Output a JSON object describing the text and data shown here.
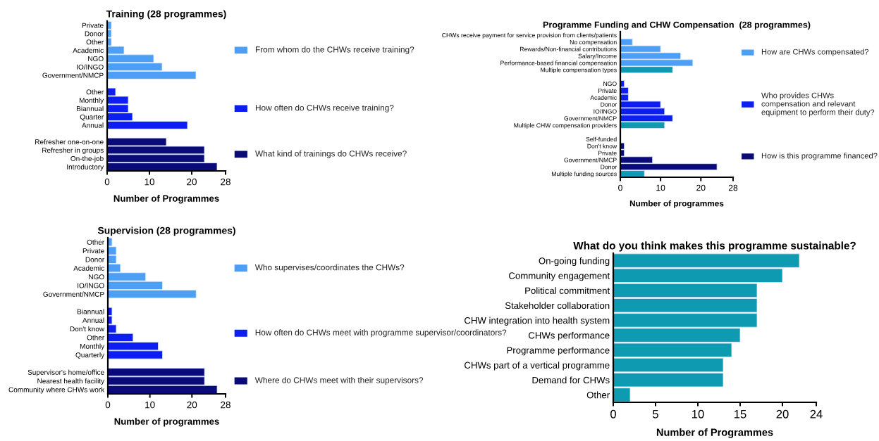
{
  "chart_data": [
    {
      "type": "bar",
      "orientation": "horizontal",
      "title": "Training (28 programmes)",
      "xlabel": "Number of Programmes",
      "xlim": [
        0,
        28
      ],
      "xticks": [
        0,
        10,
        20,
        28
      ],
      "legend": "right",
      "categories": [
        "Private",
        "Donor",
        "Other",
        "Academic",
        "NGO",
        "IO/INGO",
        "Government/NMCP",
        null,
        "Other",
        "Monthly",
        "Biannual",
        "Quarter",
        "Annual",
        null,
        "Refresher one-on-one",
        "Refresher in groups",
        "On-the-job",
        "Introductory"
      ],
      "series": [
        {
          "name": "From whom do the CHWs receive training?",
          "color": "#4d9ff5",
          "values": [
            1,
            1,
            1,
            4,
            11,
            13,
            21,
            null,
            null,
            null,
            null,
            null,
            null,
            null,
            null,
            null,
            null,
            null
          ]
        },
        {
          "name": "How often do CHWs receive training?",
          "color": "#0c1ef2",
          "values": [
            null,
            null,
            null,
            null,
            null,
            null,
            null,
            null,
            2,
            5,
            5,
            6,
            19,
            null,
            null,
            null,
            null,
            null
          ]
        },
        {
          "name": "What kind of trainings do CHWs receive?",
          "color": "#0a0a78",
          "values": [
            null,
            null,
            null,
            null,
            null,
            null,
            null,
            null,
            null,
            null,
            null,
            null,
            null,
            null,
            14,
            23,
            23,
            26
          ]
        }
      ]
    },
    {
      "type": "bar",
      "orientation": "horizontal",
      "title": "Programme Funding and CHW Compensation  (28 programmes)",
      "xlabel": "Number of programmes",
      "xlim": [
        0,
        28
      ],
      "xticks": [
        0,
        10,
        20,
        28
      ],
      "legend": "right",
      "categories": [
        "CHWs receive payment for service provision from clients/patients",
        "No compensation",
        "Rewards/Non-financial contributions",
        "Salary/Income",
        "Performance-based financial compensation",
        "Multiple compensation types",
        null,
        "NGO",
        "Private",
        "Academic",
        "Donor",
        "IO/INGO",
        "Government/NMCP",
        "Multiple CHW compensation providers",
        null,
        "Self-funded",
        "Don't know",
        "Private",
        "Government/NMCP",
        "Donor",
        "Multiple funding sources"
      ],
      "series": [
        {
          "name": "How are CHWs compensated?",
          "color": "#4d9ff5",
          "values": [
            0,
            3,
            10,
            15,
            18,
            13,
            null,
            null,
            null,
            null,
            null,
            null,
            null,
            null,
            null,
            null,
            null,
            null,
            null,
            null,
            null
          ],
          "colors": [
            "#4d9ff5",
            "#4d9ff5",
            "#4d9ff5",
            "#4d9ff5",
            "#4d9ff5",
            "#0e9ab0",
            null,
            null,
            null,
            null,
            null,
            null,
            null,
            null,
            null,
            null,
            null,
            null,
            null,
            null,
            null
          ]
        },
        {
          "name": "Who provides CHWs compensation and relevant equipment to perform their duty?",
          "color": "#0c1ef2",
          "values": [
            null,
            null,
            null,
            null,
            null,
            null,
            null,
            1,
            2,
            2,
            10,
            11,
            13,
            11,
            null,
            null,
            null,
            null,
            null,
            null,
            null
          ],
          "colors": [
            null,
            null,
            null,
            null,
            null,
            null,
            null,
            "#0c1ef2",
            "#0c1ef2",
            "#0c1ef2",
            "#0c1ef2",
            "#0c1ef2",
            "#0c1ef2",
            "#0e9ab0",
            null,
            null,
            null,
            null,
            null,
            null,
            null
          ]
        },
        {
          "name": "How is this programme financed?",
          "color": "#0a0a78",
          "values": [
            null,
            null,
            null,
            null,
            null,
            null,
            null,
            null,
            null,
            null,
            null,
            null,
            null,
            null,
            null,
            0,
            1,
            1,
            8,
            24,
            6
          ],
          "colors": [
            null,
            null,
            null,
            null,
            null,
            null,
            null,
            null,
            null,
            null,
            null,
            null,
            null,
            null,
            null,
            "#0a0a78",
            "#0a0a78",
            "#0a0a78",
            "#0a0a78",
            "#0a0a78",
            "#0e9ab0"
          ]
        }
      ]
    },
    {
      "type": "bar",
      "orientation": "horizontal",
      "title": "Supervision (28 programmes)",
      "xlabel": "Number of programmes",
      "xlim": [
        0,
        28
      ],
      "xticks": [
        0,
        10,
        20,
        28
      ],
      "legend": "right",
      "categories": [
        "Other",
        "Private",
        "Donor",
        "Academic",
        "NGO",
        "IO/INGO",
        "Government/NMCP",
        null,
        "Biannual",
        "Annual",
        "Don't know",
        "Other",
        "Monthly",
        "Quarterly",
        null,
        "Supervisor's home/office",
        "Nearest health facility",
        "Community where CHWs work"
      ],
      "series": [
        {
          "name": "Who supervises/coordinates the CHWs?",
          "color": "#4d9ff5",
          "values": [
            1,
            2,
            2,
            3,
            9,
            13,
            21,
            null,
            null,
            null,
            null,
            null,
            null,
            null,
            null,
            null,
            null,
            null
          ]
        },
        {
          "name": "How often do CHWs meet with programme supervisor/coordinators?",
          "color": "#0c1ef2",
          "values": [
            null,
            null,
            null,
            null,
            null,
            null,
            null,
            null,
            1,
            1,
            2,
            6,
            12,
            13,
            null,
            null,
            null,
            null
          ]
        },
        {
          "name": "Where do CHWs meet with their supervisors?",
          "color": "#0a0a78",
          "values": [
            null,
            null,
            null,
            null,
            null,
            null,
            null,
            null,
            null,
            null,
            null,
            null,
            null,
            null,
            null,
            23,
            23,
            26
          ]
        }
      ]
    },
    {
      "type": "bar",
      "orientation": "horizontal",
      "title": "What do you think makes this programme sustainable?",
      "xlabel": "Number of Programmes",
      "xlim": [
        0,
        24
      ],
      "xticks": [
        0,
        5,
        10,
        15,
        20,
        24
      ],
      "color": "#0e9ab0",
      "categories": [
        "On-going funding",
        "Community engagement",
        "Political commitment",
        "Stakeholder collaboration",
        "CHW integration into health system",
        "CHWs performance",
        "Programme performance",
        "CHWs part of a vertical programme",
        "Demand for CHWs",
        "Other"
      ],
      "values": [
        22,
        20,
        17,
        17,
        17,
        15,
        14,
        13,
        13,
        2
      ]
    }
  ]
}
